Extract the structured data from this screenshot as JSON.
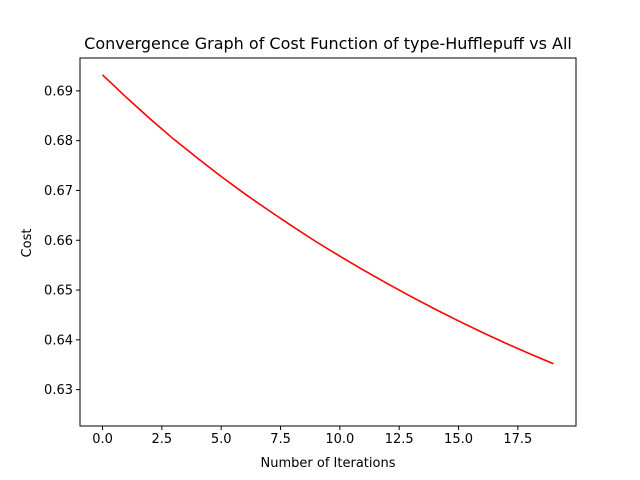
{
  "chart_data": {
    "type": "line",
    "title": "Convergence Graph of Cost Function of type-Hufflepuff vs All",
    "xlabel": "Number of Iterations",
    "ylabel": "Cost",
    "xlim": [
      -0.95,
      19.95
    ],
    "ylim": [
      0.6227,
      0.6966
    ],
    "xticks": [
      0,
      2.5,
      5,
      7.5,
      10,
      12.5,
      15,
      17.5
    ],
    "xtick_labels": [
      "0.0",
      "2.5",
      "5.0",
      "7.5",
      "10.0",
      "12.5",
      "15.0",
      "17.5"
    ],
    "yticks": [
      0.63,
      0.64,
      0.65,
      0.66,
      0.67,
      0.68,
      0.69
    ],
    "ytick_labels": [
      "0.63",
      "0.64",
      "0.65",
      "0.66",
      "0.67",
      "0.68",
      "0.69"
    ],
    "grid": false,
    "legend": null,
    "series": [
      {
        "color": "#ff0000",
        "x": [
          0,
          1,
          2,
          3,
          4,
          5,
          6,
          7,
          8,
          9,
          10,
          11,
          12,
          13,
          14,
          15,
          16,
          17,
          18,
          19
        ],
        "y": [
          0.6932,
          0.6887,
          0.6844,
          0.6803,
          0.6765,
          0.6728,
          0.6693,
          0.666,
          0.6628,
          0.6597,
          0.6568,
          0.654,
          0.6513,
          0.6487,
          0.6462,
          0.6438,
          0.6415,
          0.6393,
          0.6372,
          0.6352
        ]
      }
    ]
  }
}
